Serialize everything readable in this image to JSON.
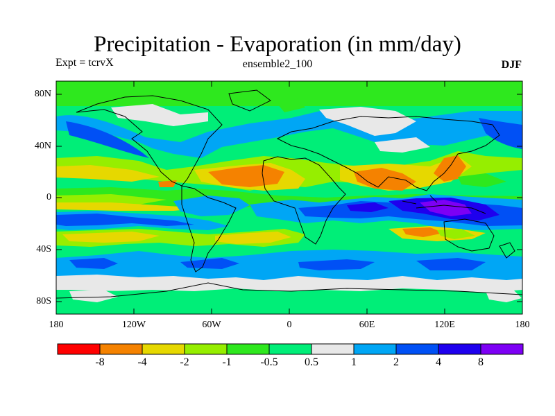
{
  "title": "Precipitation - Evaporation (in mm/day)",
  "experiment": "Expt = tcrvX",
  "ensemble": "ensemble2_100",
  "season": "DJF",
  "map": {
    "lat_labels": [
      "80N",
      "40N",
      "0",
      "40S",
      "80S"
    ],
    "lon_labels": [
      "180",
      "120W",
      "60W",
      "0",
      "60E",
      "120E",
      "180"
    ]
  },
  "colorbar": {
    "colors": [
      "#ff0000",
      "#f58200",
      "#e6d800",
      "#96ee00",
      "#2ee81e",
      "#00ee78",
      "#e8e8e8",
      "#00a6f5",
      "#0050f5",
      "#1e00ee",
      "#7d00f5"
    ],
    "labels": [
      "-8",
      "-4",
      "-2",
      "-1",
      "-0.5",
      "0.5",
      "1",
      "2",
      "4",
      "8"
    ]
  }
}
